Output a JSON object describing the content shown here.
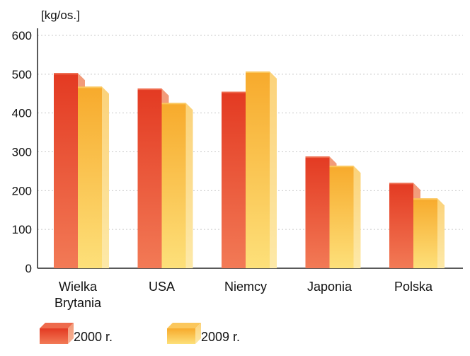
{
  "chart_data": {
    "type": "bar",
    "unit_label": "[kg/os.]",
    "categories": [
      [
        "Wielka",
        "Brytania"
      ],
      [
        "USA"
      ],
      [
        "Niemcy"
      ],
      [
        "Japonia"
      ],
      [
        "Polska"
      ]
    ],
    "series": [
      {
        "name": "2000 r.",
        "values": [
          503,
          463,
          455,
          288,
          220
        ],
        "color": "#e8432a"
      },
      {
        "name": "2009 r.",
        "values": [
          468,
          426,
          507,
          264,
          180
        ],
        "color": "#f9b73a"
      }
    ],
    "yticks": [
      0,
      100,
      200,
      300,
      400,
      500,
      600
    ],
    "ylim": [
      0,
      600
    ],
    "grid": true,
    "legend_position": "bottom-left"
  }
}
